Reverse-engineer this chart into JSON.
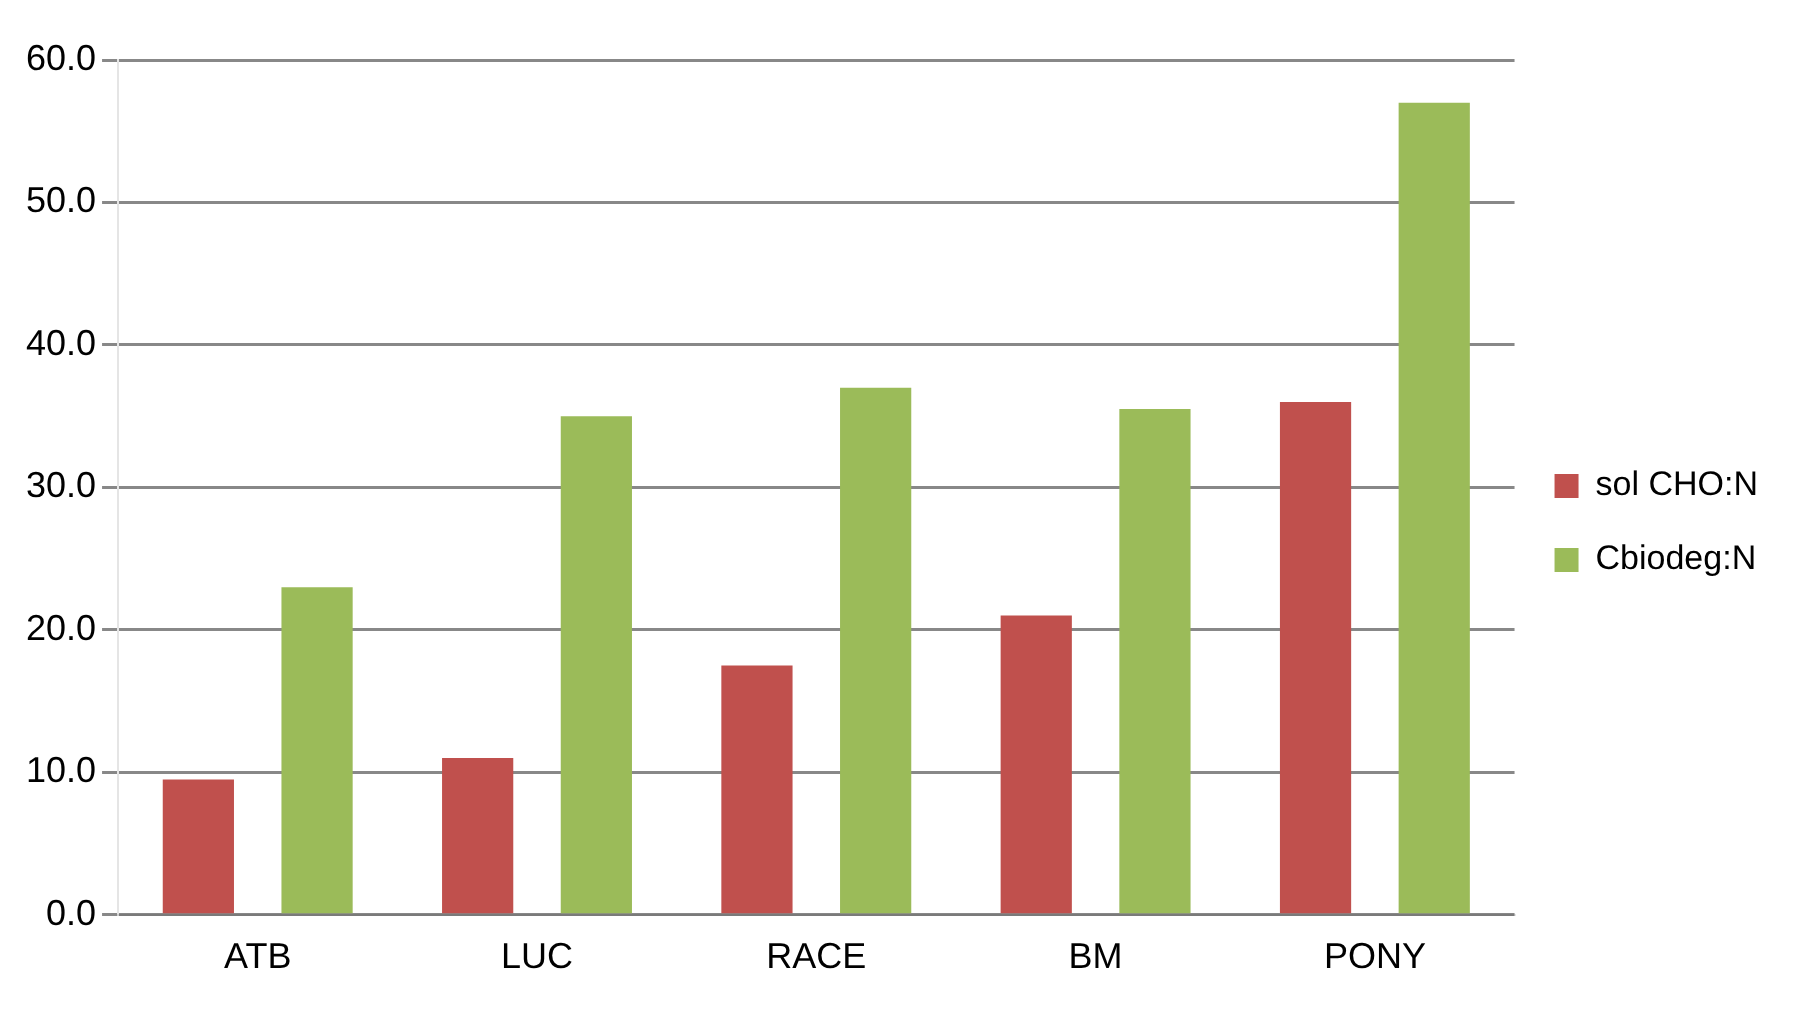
{
  "chart_data": {
    "type": "bar",
    "categories": [
      "ATB",
      "LUC",
      "RACE",
      "BM",
      "PONY"
    ],
    "series": [
      {
        "name": "sol CHO:N",
        "color": "#c0504d",
        "values": [
          9.5,
          11,
          17.5,
          21,
          36
        ]
      },
      {
        "name": "Cbiodeg:N",
        "color": "#9bbb59",
        "values": [
          23,
          35,
          37,
          35.5,
          57
        ]
      }
    ],
    "ylim": [
      0,
      60
    ],
    "yticks": [
      {
        "value": 0,
        "label": "0.0"
      },
      {
        "value": 10,
        "label": "10.0"
      },
      {
        "value": 20,
        "label": "20.0"
      },
      {
        "value": 30,
        "label": "30.0"
      },
      {
        "value": 40,
        "label": "40.0"
      },
      {
        "value": 50,
        "label": "50.0"
      },
      {
        "value": 60,
        "label": "60.0"
      }
    ],
    "grid": "y",
    "legend": "right"
  }
}
